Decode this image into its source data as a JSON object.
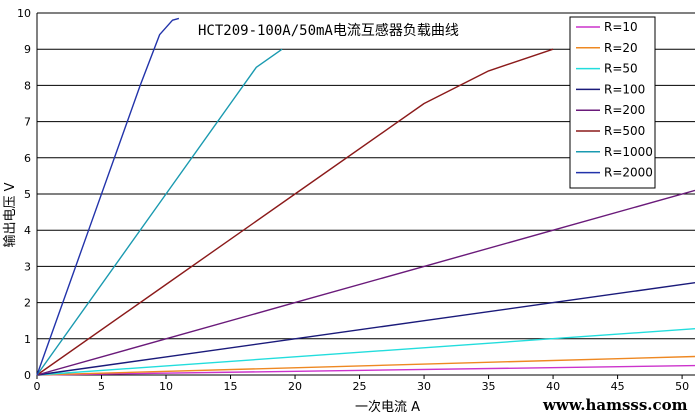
{
  "chart_data": {
    "type": "line",
    "title": "HCT209-100A/50mA电流互感器负载曲线",
    "xlabel": "一次电流 A",
    "ylabel": "输出电压 V",
    "xlim": [
      0,
      51
    ],
    "ylim": [
      0,
      10
    ],
    "xticks": [
      "0",
      "5",
      "10",
      "15",
      "20",
      "25",
      "30",
      "35",
      "40",
      "45",
      "50"
    ],
    "yticks": [
      "0",
      "1",
      "2",
      "3",
      "4",
      "5",
      "6",
      "7",
      "8",
      "9",
      "10"
    ],
    "grid": "horizontal",
    "legend_position": "top-right",
    "series": [
      {
        "name": "R=10",
        "color": "#cc33cc",
        "x": [
          0,
          51
        ],
        "y": [
          0,
          0.26
        ]
      },
      {
        "name": "R=20",
        "color": "#ee8822",
        "x": [
          0,
          51
        ],
        "y": [
          0,
          0.51
        ]
      },
      {
        "name": "R=50",
        "color": "#22dddd",
        "x": [
          0,
          51
        ],
        "y": [
          0,
          1.28
        ]
      },
      {
        "name": "R=100",
        "color": "#1a1a7a",
        "x": [
          0,
          10,
          20,
          30,
          40,
          51
        ],
        "y": [
          0,
          0.5,
          1.0,
          1.5,
          2.0,
          2.55
        ]
      },
      {
        "name": "R=200",
        "color": "#6a1a7a",
        "x": [
          0,
          10,
          20,
          30,
          40,
          51
        ],
        "y": [
          0,
          1.0,
          2.0,
          3.0,
          4.0,
          5.1
        ]
      },
      {
        "name": "R=500",
        "color": "#8b1a1a",
        "x": [
          0,
          10,
          20,
          30,
          35,
          40
        ],
        "y": [
          0,
          2.5,
          5.0,
          7.5,
          8.4,
          9.0
        ]
      },
      {
        "name": "R=1000",
        "color": "#1a9ab0",
        "x": [
          0,
          10,
          15,
          17,
          19
        ],
        "y": [
          0,
          5.0,
          7.5,
          8.5,
          9.0
        ]
      },
      {
        "name": "R=2000",
        "color": "#2233aa",
        "x": [
          0,
          4,
          8,
          9.5,
          10.5,
          11
        ],
        "y": [
          0,
          4.0,
          8.0,
          9.4,
          9.8,
          9.85
        ]
      }
    ]
  },
  "watermark": "www.hamsss.com"
}
